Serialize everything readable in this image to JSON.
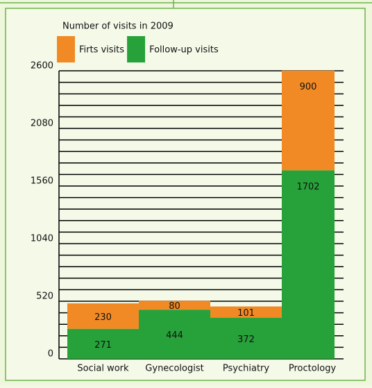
{
  "chart_data": {
    "type": "stacked_bar",
    "title": "Number of visits in 2009",
    "categories": [
      "Social work",
      "Gynecologist",
      "Psychiatry",
      "Proctology"
    ],
    "series": [
      {
        "name": "Follow-up visits",
        "color": "#27a23a",
        "values": [
          271,
          444,
          372,
          1702
        ]
      },
      {
        "name": "Firts visits",
        "color": "#f18a24",
        "values": [
          230,
          80,
          101,
          900
        ]
      }
    ],
    "ylim": [
      0,
      2600
    ],
    "yticks": [
      0,
      520,
      1040,
      1560,
      2080,
      2600
    ],
    "grid_yticks": [
      0,
      104,
      208,
      312,
      416,
      520,
      624,
      728,
      832,
      936,
      1040,
      1144,
      1248,
      1352,
      1456,
      1560,
      1664,
      1768,
      1872,
      1976,
      2080,
      2184,
      2288,
      2392,
      2496,
      2600
    ],
    "grid": true
  }
}
